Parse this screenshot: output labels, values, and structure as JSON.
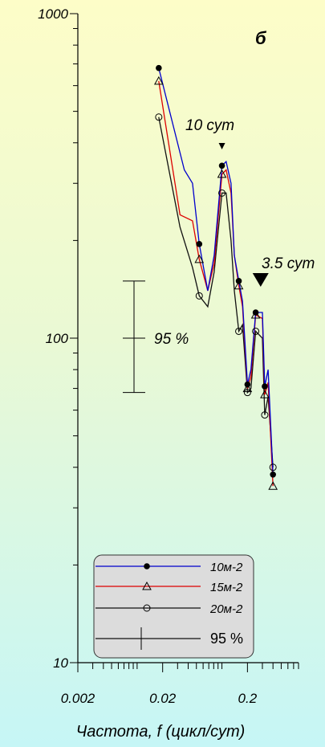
{
  "chart_data": {
    "type": "line",
    "panel_label": "б",
    "xlabel": "Частота, f (цикл/сут)",
    "ylabel": "",
    "x_scale": "log",
    "y_scale": "log",
    "xlim": [
      0.002,
      0.8
    ],
    "ylim": [
      10,
      1000
    ],
    "x_tick_labels": [
      {
        "value": 0.002,
        "label": "0.002"
      },
      {
        "value": 0.02,
        "label": "0.02"
      },
      {
        "value": 0.2,
        "label": "0.2"
      }
    ],
    "y_tick_labels": [
      {
        "value": 10,
        "label": "10"
      },
      {
        "value": 100,
        "label": "100"
      },
      {
        "value": 1000,
        "label": "1000"
      }
    ],
    "series": [
      {
        "name": "10м-2",
        "color": "#0000cc",
        "marker": "filled-circle",
        "x": [
          0.018,
          0.036,
          0.045,
          0.054,
          0.068,
          0.081,
          0.1,
          0.112,
          0.128,
          0.14,
          0.158,
          0.175,
          0.2,
          0.22,
          0.25,
          0.3,
          0.32,
          0.35,
          0.4
        ],
        "y": [
          680,
          330,
          300,
          195,
          140,
          180,
          340,
          350,
          300,
          180,
          150,
          130,
          72,
          80,
          120,
          120,
          71,
          80,
          38
        ]
      },
      {
        "name": "15м-2",
        "color": "#dd0000",
        "marker": "open-triangle",
        "x": [
          0.018,
          0.032,
          0.045,
          0.054,
          0.068,
          0.081,
          0.1,
          0.112,
          0.128,
          0.14,
          0.158,
          0.175,
          0.2,
          0.22,
          0.25,
          0.3,
          0.32,
          0.35,
          0.4
        ],
        "y": [
          620,
          240,
          230,
          175,
          140,
          170,
          320,
          330,
          280,
          180,
          145,
          125,
          70,
          76,
          118,
          115,
          67,
          73,
          35
        ]
      },
      {
        "name": "20м-2",
        "color": "#111111",
        "marker": "open-circle",
        "x": [
          0.018,
          0.032,
          0.045,
          0.054,
          0.068,
          0.081,
          0.1,
          0.112,
          0.128,
          0.14,
          0.158,
          0.175,
          0.2,
          0.22,
          0.25,
          0.3,
          0.32,
          0.35,
          0.4
        ],
        "y": [
          480,
          220,
          165,
          135,
          125,
          160,
          280,
          280,
          200,
          140,
          105,
          110,
          68,
          70,
          105,
          100,
          58,
          66,
          40
        ]
      }
    ],
    "legend": {
      "position": "bottom-right",
      "entries": [
        {
          "label": "10м-2",
          "color": "#0000cc",
          "marker": "filled-circle"
        },
        {
          "label": "15м-2",
          "color": "#dd0000",
          "marker": "open-triangle"
        },
        {
          "label": "20м-2",
          "color": "#111111",
          "marker": "open-circle"
        },
        {
          "label": "95 %",
          "color": "#111111",
          "marker": "cross"
        }
      ]
    },
    "annotations": [
      {
        "text": "10 сут",
        "at_x": 0.1
      },
      {
        "text": "3.5 сут",
        "at_x": 0.286
      }
    ],
    "confidence_interval": {
      "label": "95 %",
      "center": 100,
      "upper": 150,
      "lower": 68
    }
  }
}
